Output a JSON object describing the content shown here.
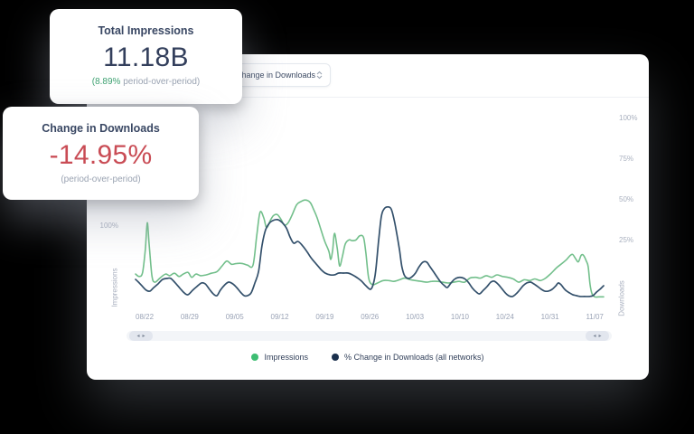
{
  "panel": {
    "dropdown_value": "Change in Downloads"
  },
  "icons": {
    "scroll_left": "◂",
    "scroll_right": "▸"
  },
  "cards": {
    "impressions": {
      "title": "Total Impressions",
      "value": "11.18B",
      "delta": "(8.89%",
      "delta_rest": " period-over-period)"
    },
    "downloads": {
      "title": "Change in Downloads",
      "value": "-14.95%",
      "sub": "(period-over-period)"
    }
  },
  "chart_data": {
    "type": "line",
    "title": "",
    "x_labels": [
      "08/22",
      "08/29",
      "09/05",
      "09/12",
      "09/19",
      "09/26",
      "10/03",
      "10/10",
      "10/24",
      "10/31",
      "11/07"
    ],
    "grid": false,
    "legend_position": "bottom-center",
    "axes": {
      "left": {
        "title": "Impressions",
        "unit": "%",
        "range": [
          -5.6,
          131.1
        ],
        "ticks": [
          {
            "value": 100,
            "label": "100%"
          }
        ]
      },
      "right": {
        "title": "Downloads",
        "unit": "%",
        "range": [
          -18.9,
          49.4
        ],
        "ticks": [
          {
            "value": 100,
            "label": "100%"
          },
          {
            "value": 75,
            "label": "75%"
          },
          {
            "value": 50,
            "label": "50%"
          },
          {
            "value": 25,
            "label": "25%"
          }
        ]
      }
    },
    "series": [
      {
        "id": "impressions",
        "name": "Impressions",
        "axis": "left",
        "color": "#72bf8b",
        "dot_color": "#3dbd72",
        "points": [
          [
            0,
            41
          ],
          [
            0.008,
            38
          ],
          [
            0.015,
            43
          ],
          [
            0.021,
            72
          ],
          [
            0.025,
            104
          ],
          [
            0.029,
            78
          ],
          [
            0.035,
            39
          ],
          [
            0.041,
            31
          ],
          [
            0.052,
            36
          ],
          [
            0.064,
            41
          ],
          [
            0.073,
            39
          ],
          [
            0.083,
            42
          ],
          [
            0.093,
            38
          ],
          [
            0.102,
            41
          ],
          [
            0.112,
            43
          ],
          [
            0.12,
            37
          ],
          [
            0.129,
            41
          ],
          [
            0.139,
            39
          ],
          [
            0.151,
            40
          ],
          [
            0.162,
            42
          ],
          [
            0.174,
            44
          ],
          [
            0.185,
            51
          ],
          [
            0.195,
            57
          ],
          [
            0.205,
            53
          ],
          [
            0.216,
            54
          ],
          [
            0.228,
            54
          ],
          [
            0.239,
            52
          ],
          [
            0.251,
            52
          ],
          [
            0.259,
            89
          ],
          [
            0.266,
            117
          ],
          [
            0.274,
            110
          ],
          [
            0.28,
            98
          ],
          [
            0.288,
            107
          ],
          [
            0.295,
            113
          ],
          [
            0.303,
            114
          ],
          [
            0.311,
            108
          ],
          [
            0.318,
            101
          ],
          [
            0.326,
            104
          ],
          [
            0.334,
            113
          ],
          [
            0.344,
            126
          ],
          [
            0.353,
            130
          ],
          [
            0.363,
            132
          ],
          [
            0.373,
            129
          ],
          [
            0.38,
            121
          ],
          [
            0.388,
            110
          ],
          [
            0.398,
            92
          ],
          [
            0.405,
            80
          ],
          [
            0.413,
            69
          ],
          [
            0.417,
            59
          ],
          [
            0.421,
            70
          ],
          [
            0.425,
            91
          ],
          [
            0.431,
            72
          ],
          [
            0.436,
            51
          ],
          [
            0.442,
            63
          ],
          [
            0.448,
            78
          ],
          [
            0.456,
            83
          ],
          [
            0.463,
            82
          ],
          [
            0.471,
            83
          ],
          [
            0.479,
            88
          ],
          [
            0.487,
            86
          ],
          [
            0.492,
            67
          ],
          [
            0.498,
            36
          ],
          [
            0.506,
            28
          ],
          [
            0.517,
            30
          ],
          [
            0.529,
            33
          ],
          [
            0.541,
            33
          ],
          [
            0.552,
            32
          ],
          [
            0.564,
            34
          ],
          [
            0.575,
            36
          ],
          [
            0.587,
            34
          ],
          [
            0.598,
            33
          ],
          [
            0.61,
            32
          ],
          [
            0.622,
            31
          ],
          [
            0.633,
            32
          ],
          [
            0.645,
            32
          ],
          [
            0.656,
            31
          ],
          [
            0.668,
            30
          ],
          [
            0.68,
            31
          ],
          [
            0.691,
            32
          ],
          [
            0.703,
            31
          ],
          [
            0.714,
            36
          ],
          [
            0.726,
            37
          ],
          [
            0.737,
            36
          ],
          [
            0.749,
            39
          ],
          [
            0.761,
            37
          ],
          [
            0.772,
            40
          ],
          [
            0.784,
            38
          ],
          [
            0.795,
            37
          ],
          [
            0.807,
            35
          ],
          [
            0.819,
            31
          ],
          [
            0.83,
            34
          ],
          [
            0.842,
            33
          ],
          [
            0.853,
            35
          ],
          [
            0.865,
            33
          ],
          [
            0.876,
            36
          ],
          [
            0.888,
            42
          ],
          [
            0.9,
            49
          ],
          [
            0.911,
            54
          ],
          [
            0.921,
            59
          ],
          [
            0.929,
            64
          ],
          [
            0.934,
            65
          ],
          [
            0.94,
            60
          ],
          [
            0.946,
            56
          ],
          [
            0.952,
            64
          ],
          [
            0.957,
            64
          ],
          [
            0.963,
            57
          ],
          [
            0.967,
            50
          ],
          [
            0.971,
            28
          ],
          [
            0.975,
            17
          ],
          [
            0.981,
            13
          ],
          [
            0.99,
            13
          ],
          [
            1,
            13
          ]
        ]
      },
      {
        "id": "downloads",
        "name": "% Change in Downloads (all networks)",
        "axis": "right",
        "color": "#33506b",
        "dot_color": "#1b304d",
        "points": [
          [
            0,
            1.1
          ],
          [
            0.008,
            -1.1
          ],
          [
            0.015,
            -3.3
          ],
          [
            0.023,
            -5.6
          ],
          [
            0.031,
            -6.1
          ],
          [
            0.039,
            -3.9
          ],
          [
            0.048,
            -1.7
          ],
          [
            0.058,
            1.1
          ],
          [
            0.068,
            1.7
          ],
          [
            0.075,
            1.7
          ],
          [
            0.085,
            -1.1
          ],
          [
            0.095,
            -4.4
          ],
          [
            0.104,
            -7.2
          ],
          [
            0.112,
            -8.3
          ],
          [
            0.122,
            -5.6
          ],
          [
            0.131,
            -3.3
          ],
          [
            0.141,
            -1.1
          ],
          [
            0.149,
            -1.7
          ],
          [
            0.158,
            -5
          ],
          [
            0.166,
            -7.8
          ],
          [
            0.174,
            -8.9
          ],
          [
            0.181,
            -5.6
          ],
          [
            0.191,
            -2.2
          ],
          [
            0.199,
            -0.6
          ],
          [
            0.208,
            -1.7
          ],
          [
            0.216,
            -3.9
          ],
          [
            0.224,
            -6.7
          ],
          [
            0.232,
            -8.9
          ],
          [
            0.239,
            -8.9
          ],
          [
            0.247,
            -7.2
          ],
          [
            0.255,
            -1.1
          ],
          [
            0.263,
            6.1
          ],
          [
            0.27,
            21.7
          ],
          [
            0.278,
            31.7
          ],
          [
            0.286,
            35.6
          ],
          [
            0.293,
            37.2
          ],
          [
            0.303,
            37.8
          ],
          [
            0.313,
            36.1
          ],
          [
            0.322,
            32.8
          ],
          [
            0.33,
            27.2
          ],
          [
            0.338,
            23.3
          ],
          [
            0.347,
            24.4
          ],
          [
            0.357,
            21.7
          ],
          [
            0.367,
            17.8
          ],
          [
            0.376,
            13.9
          ],
          [
            0.386,
            10.6
          ],
          [
            0.396,
            7.2
          ],
          [
            0.405,
            5
          ],
          [
            0.415,
            3.9
          ],
          [
            0.425,
            3.9
          ],
          [
            0.434,
            5
          ],
          [
            0.444,
            5
          ],
          [
            0.454,
            5
          ],
          [
            0.463,
            3.9
          ],
          [
            0.473,
            2.2
          ],
          [
            0.483,
            0
          ],
          [
            0.492,
            -2.8
          ],
          [
            0.502,
            -5
          ],
          [
            0.508,
            -1.7
          ],
          [
            0.513,
            6.1
          ],
          [
            0.519,
            23.9
          ],
          [
            0.525,
            39.4
          ],
          [
            0.531,
            44.4
          ],
          [
            0.539,
            45.6
          ],
          [
            0.546,
            44.4
          ],
          [
            0.552,
            38.3
          ],
          [
            0.558,
            29.4
          ],
          [
            0.564,
            18.9
          ],
          [
            0.569,
            8.9
          ],
          [
            0.575,
            3.3
          ],
          [
            0.583,
            1.7
          ],
          [
            0.591,
            2.8
          ],
          [
            0.598,
            5
          ],
          [
            0.606,
            8.9
          ],
          [
            0.614,
            11.7
          ],
          [
            0.622,
            11.7
          ],
          [
            0.629,
            8.9
          ],
          [
            0.637,
            5.6
          ],
          [
            0.645,
            2.2
          ],
          [
            0.652,
            -0.6
          ],
          [
            0.66,
            -2.8
          ],
          [
            0.666,
            -3.9
          ],
          [
            0.674,
            -1.1
          ],
          [
            0.681,
            1.1
          ],
          [
            0.689,
            2.2
          ],
          [
            0.697,
            2.2
          ],
          [
            0.705,
            1.1
          ],
          [
            0.712,
            -1.1
          ],
          [
            0.72,
            -4.4
          ],
          [
            0.728,
            -6.7
          ],
          [
            0.735,
            -7.8
          ],
          [
            0.743,
            -5.6
          ],
          [
            0.751,
            -3.3
          ],
          [
            0.759,
            -0.6
          ],
          [
            0.766,
            0
          ],
          [
            0.774,
            -1.7
          ],
          [
            0.782,
            -4.4
          ],
          [
            0.79,
            -7.2
          ],
          [
            0.797,
            -8.9
          ],
          [
            0.805,
            -9.4
          ],
          [
            0.813,
            -7.8
          ],
          [
            0.82,
            -5.6
          ],
          [
            0.828,
            -2.8
          ],
          [
            0.836,
            -1.1
          ],
          [
            0.844,
            -0.6
          ],
          [
            0.851,
            -1.7
          ],
          [
            0.859,
            -3.3
          ],
          [
            0.867,
            -5
          ],
          [
            0.874,
            -6.1
          ],
          [
            0.882,
            -6.1
          ],
          [
            0.89,
            -5
          ],
          [
            0.898,
            -2.8
          ],
          [
            0.903,
            -1.1
          ],
          [
            0.909,
            -2.2
          ],
          [
            0.915,
            -4.4
          ],
          [
            0.921,
            -6.1
          ],
          [
            0.927,
            -7.2
          ],
          [
            0.934,
            -8.3
          ],
          [
            0.942,
            -8.9
          ],
          [
            0.95,
            -9.4
          ],
          [
            0.959,
            -9.4
          ],
          [
            0.969,
            -9.4
          ],
          [
            0.977,
            -8.9
          ],
          [
            0.985,
            -6.7
          ],
          [
            0.992,
            -5
          ],
          [
            1,
            -2.8
          ]
        ]
      }
    ]
  }
}
